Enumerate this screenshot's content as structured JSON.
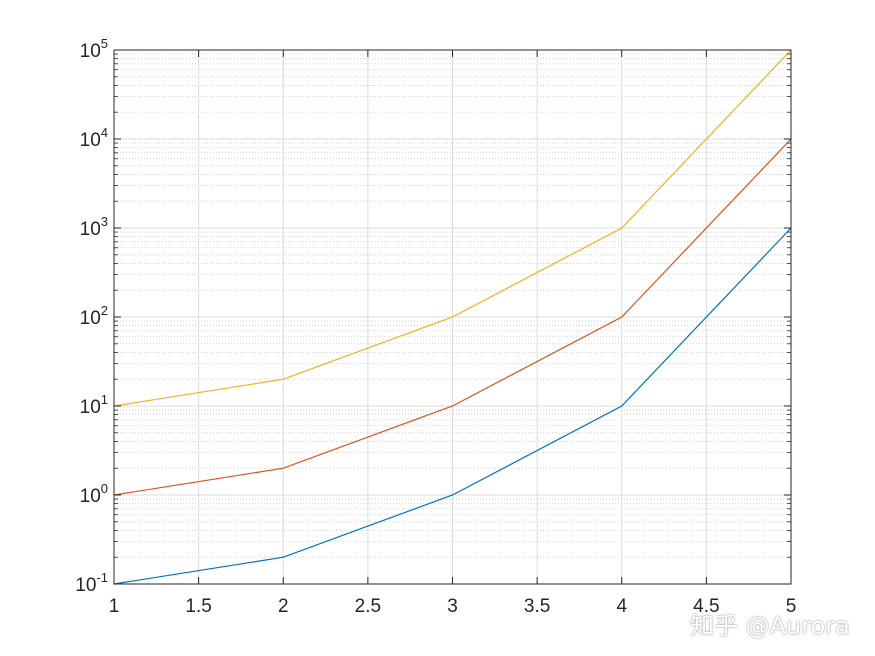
{
  "chart_data": {
    "type": "line",
    "title": "",
    "xlabel": "",
    "ylabel": "",
    "x": [
      1,
      2,
      3,
      4,
      5
    ],
    "xlim": [
      1,
      5
    ],
    "ylim": [
      0.1,
      100000
    ],
    "yscale": "log",
    "grid": true,
    "minor_grid": true,
    "x_ticks": [
      "1",
      "1.5",
      "2",
      "2.5",
      "3",
      "3.5",
      "4",
      "4.5",
      "5"
    ],
    "x_tick_values": [
      1,
      1.5,
      2,
      2.5,
      3,
      3.5,
      4,
      4.5,
      5
    ],
    "y_ticks": [
      {
        "value": 0.1,
        "base": "10",
        "exp": "-1"
      },
      {
        "value": 1,
        "base": "10",
        "exp": "0"
      },
      {
        "value": 10,
        "base": "10",
        "exp": "1"
      },
      {
        "value": 100,
        "base": "10",
        "exp": "2"
      },
      {
        "value": 1000,
        "base": "10",
        "exp": "3"
      },
      {
        "value": 10000,
        "base": "10",
        "exp": "4"
      },
      {
        "value": 100000,
        "base": "10",
        "exp": "5"
      }
    ],
    "series": [
      {
        "values": [
          0.1,
          0.2,
          1,
          10,
          1000
        ],
        "color": "#0072BD"
      },
      {
        "values": [
          1,
          2,
          10,
          100,
          10000
        ],
        "color": "#D95319"
      },
      {
        "values": [
          10,
          20,
          100,
          1000,
          100000
        ],
        "color": "#EDB120"
      }
    ]
  },
  "watermark": "知乎 @Aurora"
}
